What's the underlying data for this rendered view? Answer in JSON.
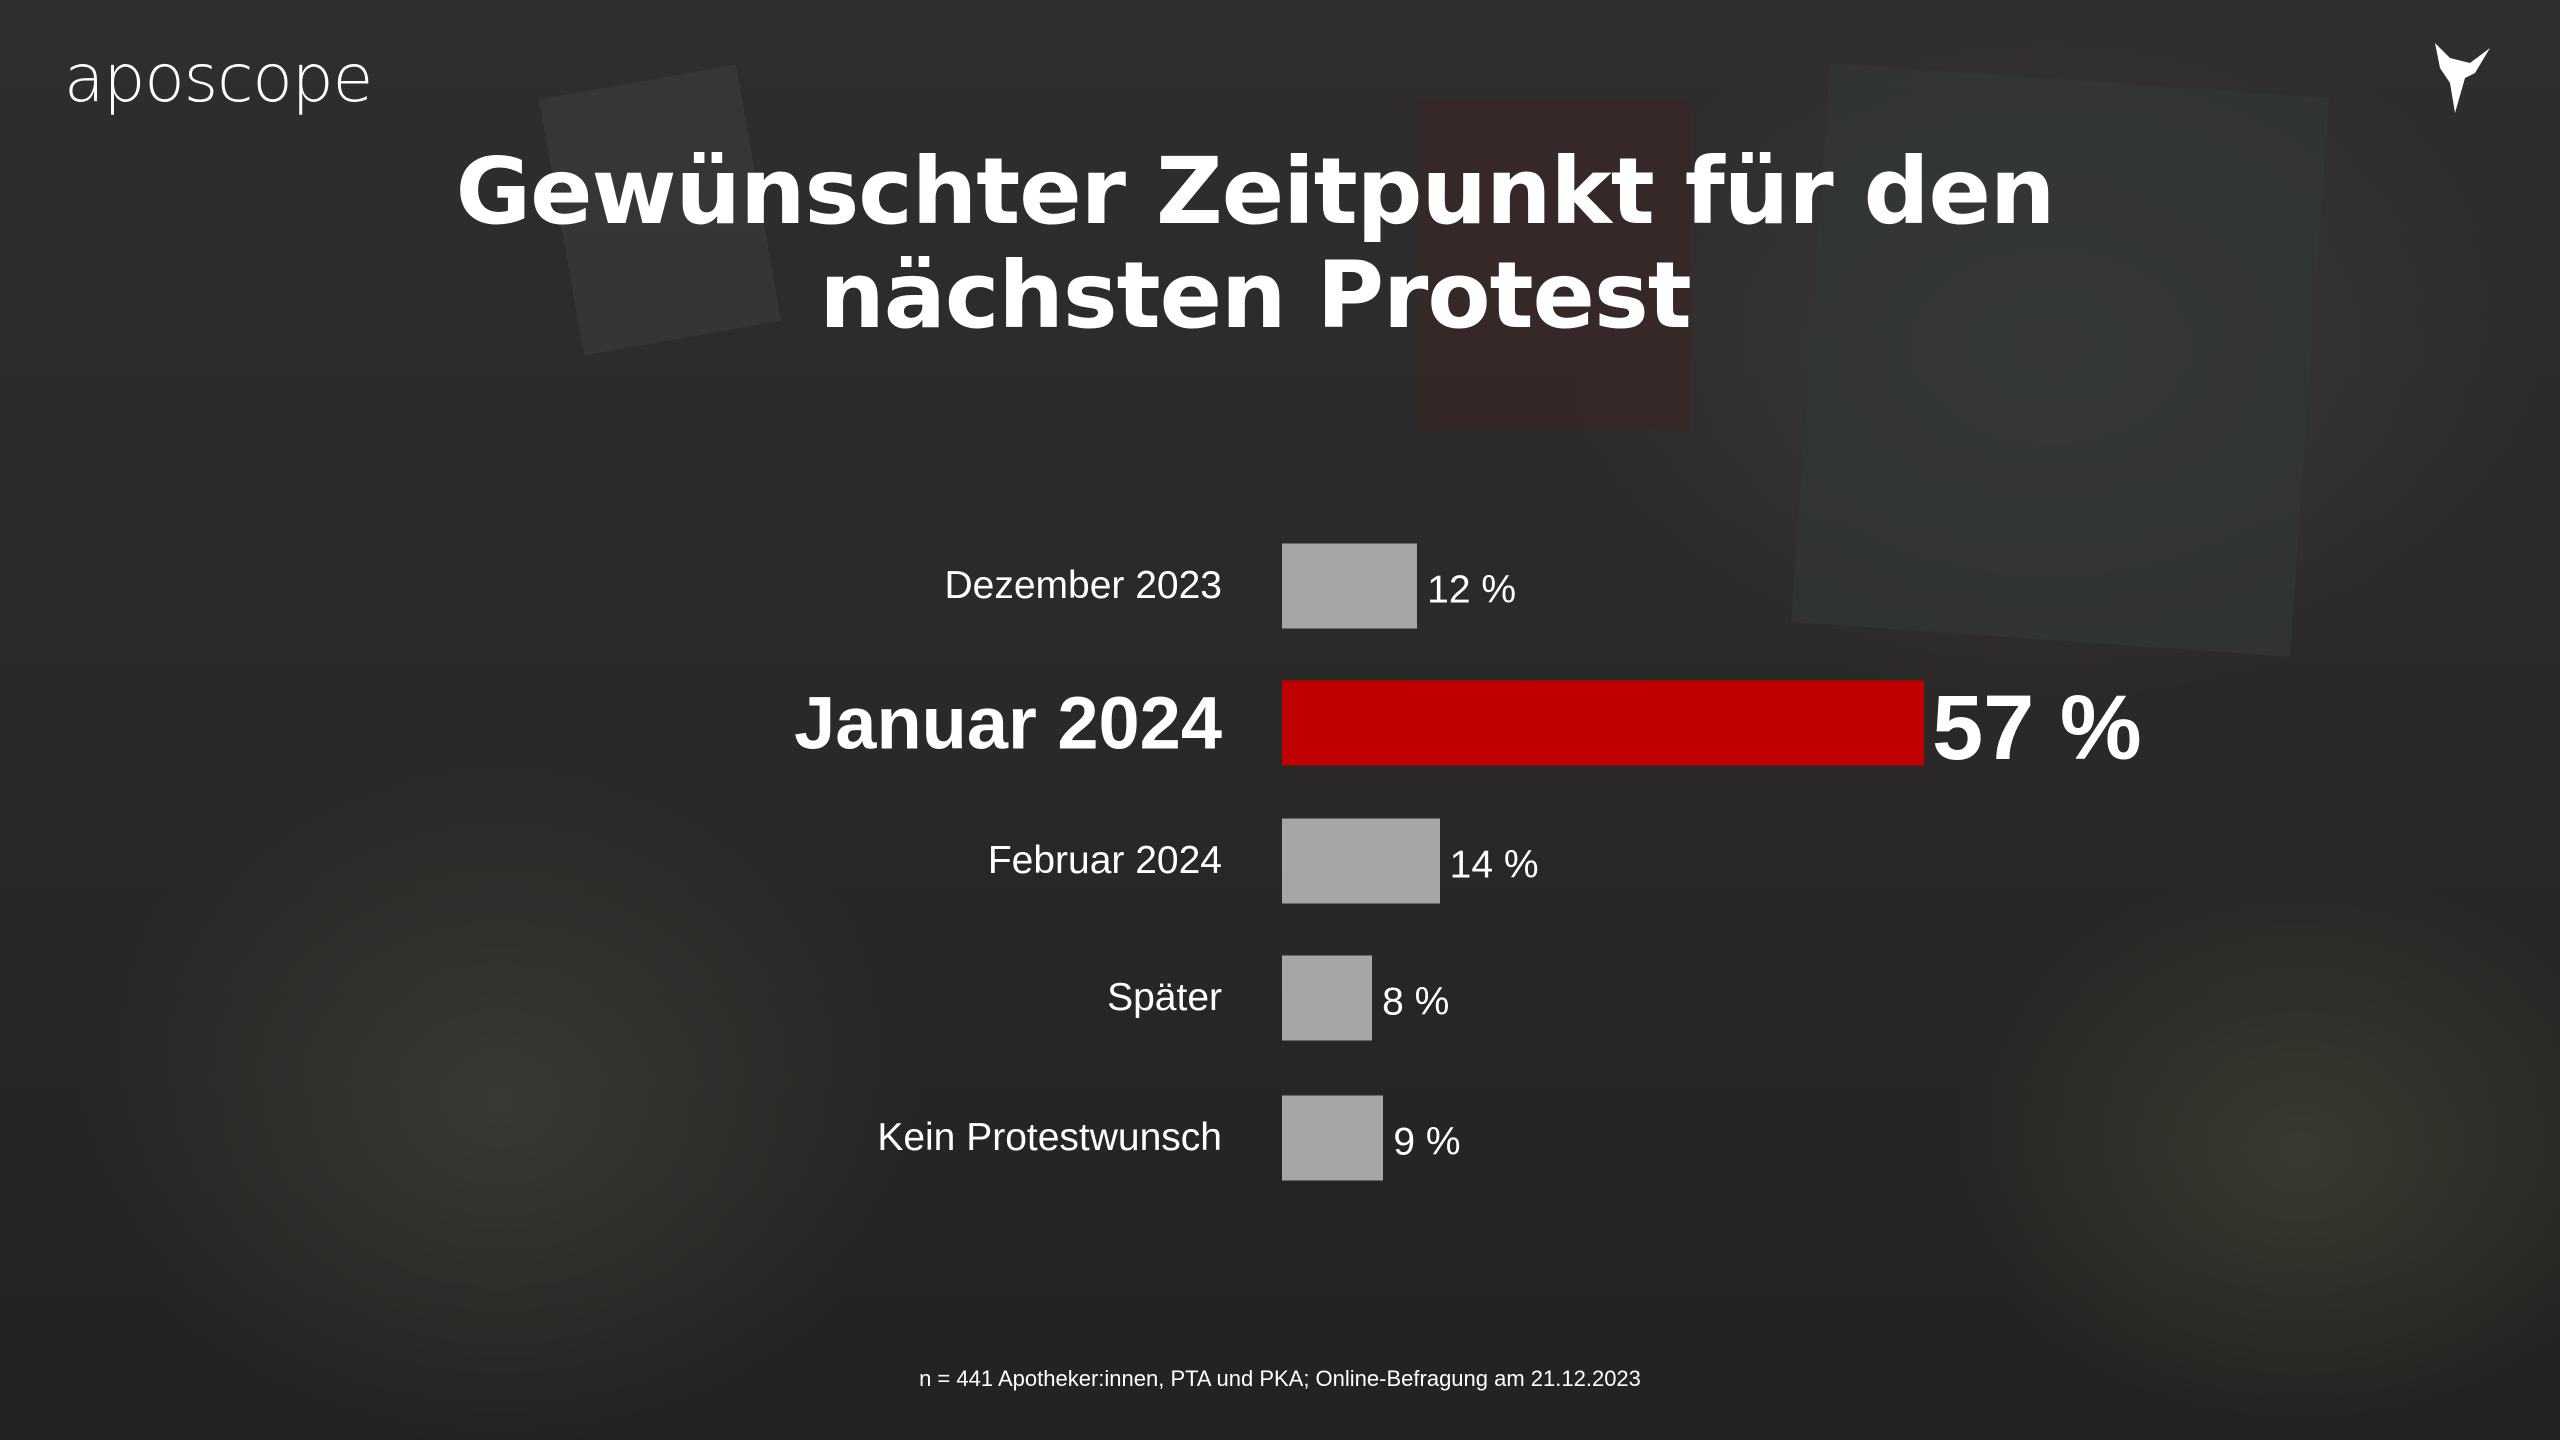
{
  "brand": {
    "logo_text": "aposcope",
    "icon": "bird-origami-icon"
  },
  "chart_data": {
    "type": "bar",
    "orientation": "horizontal",
    "title": "Gewünschter Zeitpunkt für den nächsten Protest",
    "title_lines": [
      "Gewünschter Zeitpunkt für den",
      "nächsten Protest"
    ],
    "categories": [
      "Dezember 2023",
      "Januar 2024",
      "Februar 2024",
      "Später",
      "Kein Protestwunsch"
    ],
    "values": [
      12,
      57,
      14,
      8,
      9
    ],
    "value_labels": [
      "12 %",
      "57 %",
      "14 %",
      "8 %",
      "9 %"
    ],
    "highlight_index": 1,
    "colors": {
      "default": "#a6a6a6",
      "highlight": "#c00000"
    },
    "unit": "%",
    "xlim": [
      0,
      57
    ],
    "grid": false,
    "note": "n = 441 Apotheker:innen, PTA und PKA; Online-Befragung am 21.12.2023"
  }
}
